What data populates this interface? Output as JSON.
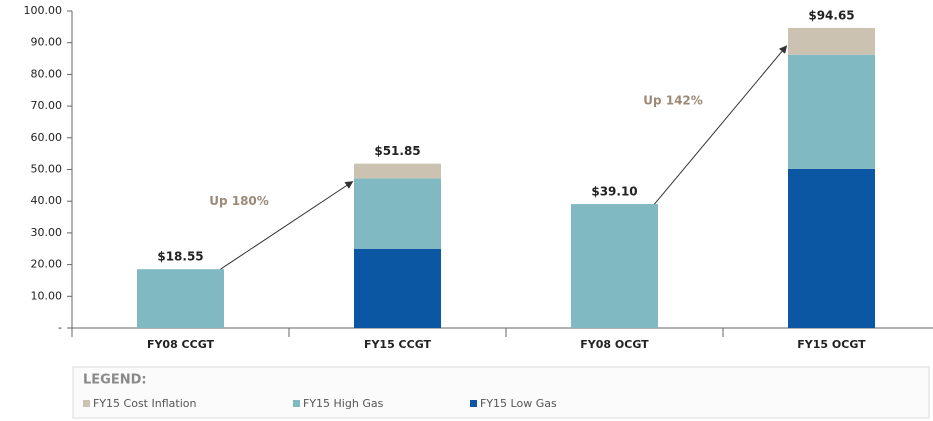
{
  "chart_data": {
    "type": "stacked_bar",
    "categories": [
      "FY08 CCGT",
      "FY15 CCGT",
      "FY08 OCGT",
      "FY15 OCGT"
    ],
    "series": [
      {
        "name": "FY15 Low Gas",
        "color": "#0b57a4",
        "values": [
          null,
          25.0,
          null,
          50.2
        ]
      },
      {
        "name": "FY15 High Gas",
        "color": "#80b9c2",
        "values": [
          18.55,
          22.2,
          39.1,
          36.0
        ]
      },
      {
        "name": "FY15 Cost Inflation",
        "color": "#cbc2b2",
        "values": [
          null,
          4.65,
          null,
          8.45
        ]
      }
    ],
    "totals": [
      18.55,
      51.85,
      39.1,
      94.65
    ],
    "total_labels": [
      "$18.55",
      "$51.85",
      "$39.10",
      "$94.65"
    ],
    "annotations": [
      "Up  180%",
      "Up  142%"
    ],
    "legend_title": "LEGEND:",
    "ylim": [
      0,
      100
    ],
    "yticks": [
      {
        "value": 0,
        "label": "-"
      },
      {
        "value": 10,
        "label": "10.00"
      },
      {
        "value": 20,
        "label": "20.00"
      },
      {
        "value": 30,
        "label": "30.00"
      },
      {
        "value": 40,
        "label": "40.00"
      },
      {
        "value": 50,
        "label": "50.00"
      },
      {
        "value": 60,
        "label": "60.00"
      },
      {
        "value": 70,
        "label": "70.00"
      },
      {
        "value": 80,
        "label": "80.00"
      },
      {
        "value": 90,
        "label": "90.00"
      },
      {
        "value": 100,
        "label": "100.00"
      }
    ]
  }
}
